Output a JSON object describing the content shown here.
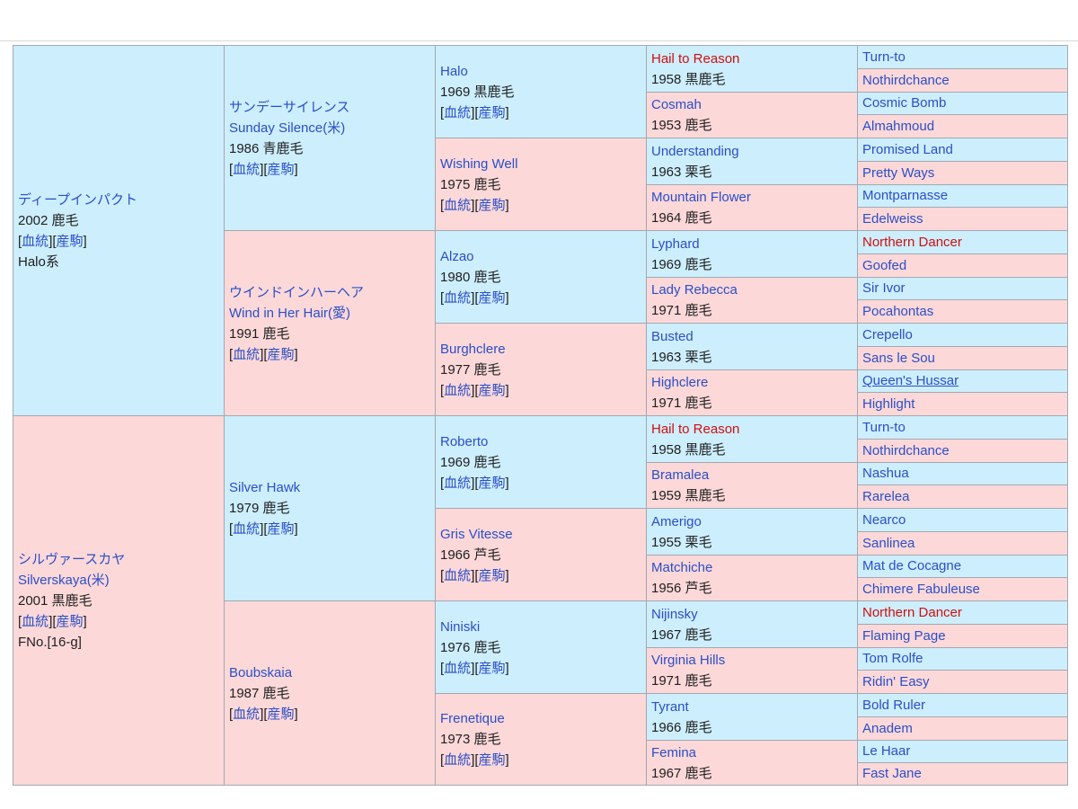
{
  "ped": {
    "g1": [
      {
        "sex": "m",
        "lines": [
          {
            "t": "ディープインパクト",
            "c": "blue"
          },
          {
            "t": "2002 鹿毛"
          },
          {
            "t": "[血統][産駒]",
            "links": true
          },
          {
            "t": "Halo系"
          }
        ]
      },
      {
        "sex": "f",
        "lines": [
          {
            "t": "シルヴァースカヤ",
            "c": "blue"
          },
          {
            "t": "Silverskaya(米)",
            "c": "blue"
          },
          {
            "t": "2001 黒鹿毛"
          },
          {
            "t": "[血統][産駒]",
            "links": true
          },
          {
            "t": "FNo.[16-g]"
          }
        ]
      }
    ],
    "g2": [
      {
        "sex": "m",
        "lines": [
          {
            "t": "サンデーサイレンス",
            "c": "blue"
          },
          {
            "t": "Sunday Silence(米)",
            "c": "blue"
          },
          {
            "t": "1986 青鹿毛"
          },
          {
            "t": "[血統][産駒]",
            "links": true
          }
        ]
      },
      {
        "sex": "f",
        "lines": [
          {
            "t": "ウインドインハーヘア",
            "c": "blue"
          },
          {
            "t": "Wind in Her Hair(愛)",
            "c": "blue"
          },
          {
            "t": "1991 鹿毛"
          },
          {
            "t": "[血統][産駒]",
            "links": true
          }
        ]
      },
      {
        "sex": "m",
        "lines": [
          {
            "t": "Silver Hawk",
            "c": "blue"
          },
          {
            "t": "1979 鹿毛"
          },
          {
            "t": "[血統][産駒]",
            "links": true
          }
        ]
      },
      {
        "sex": "f",
        "lines": [
          {
            "t": "Boubskaia",
            "c": "blue"
          },
          {
            "t": "1987 鹿毛"
          },
          {
            "t": "[血統][産駒]",
            "links": true
          }
        ]
      }
    ],
    "g3": [
      {
        "sex": "m",
        "lines": [
          {
            "t": "Halo",
            "c": "blue"
          },
          {
            "t": "1969 黒鹿毛"
          },
          {
            "t": "[血統][産駒]",
            "links": true
          }
        ]
      },
      {
        "sex": "f",
        "lines": [
          {
            "t": "Wishing Well",
            "c": "blue"
          },
          {
            "t": "1975 鹿毛"
          },
          {
            "t": "[血統][産駒]",
            "links": true
          }
        ]
      },
      {
        "sex": "m",
        "lines": [
          {
            "t": "Alzao",
            "c": "blue"
          },
          {
            "t": "1980 鹿毛"
          },
          {
            "t": "[血統][産駒]",
            "links": true
          }
        ]
      },
      {
        "sex": "f",
        "lines": [
          {
            "t": "Burghclere",
            "c": "blue"
          },
          {
            "t": "1977 鹿毛"
          },
          {
            "t": "[血統][産駒]",
            "links": true
          }
        ]
      },
      {
        "sex": "m",
        "lines": [
          {
            "t": "Roberto",
            "c": "blue"
          },
          {
            "t": "1969 鹿毛"
          },
          {
            "t": "[血統][産駒]",
            "links": true
          }
        ]
      },
      {
        "sex": "f",
        "lines": [
          {
            "t": "Gris Vitesse",
            "c": "blue"
          },
          {
            "t": "1966 芦毛"
          },
          {
            "t": "[血統][産駒]",
            "links": true
          }
        ]
      },
      {
        "sex": "m",
        "lines": [
          {
            "t": "Niniski",
            "c": "blue"
          },
          {
            "t": "1976 鹿毛"
          },
          {
            "t": "[血統][産駒]",
            "links": true
          }
        ]
      },
      {
        "sex": "f",
        "lines": [
          {
            "t": "Frenetique",
            "c": "blue"
          },
          {
            "t": "1973 鹿毛"
          },
          {
            "t": "[血統][産駒]",
            "links": true
          }
        ]
      }
    ],
    "g4": [
      {
        "sex": "m",
        "lines": [
          {
            "t": "Hail to Reason",
            "c": "red"
          },
          {
            "t": "1958 黒鹿毛"
          }
        ]
      },
      {
        "sex": "f",
        "lines": [
          {
            "t": "Cosmah",
            "c": "blue"
          },
          {
            "t": "1953 鹿毛"
          }
        ]
      },
      {
        "sex": "m",
        "lines": [
          {
            "t": "Understanding",
            "c": "blue"
          },
          {
            "t": "1963 栗毛"
          }
        ]
      },
      {
        "sex": "f",
        "lines": [
          {
            "t": "Mountain Flower",
            "c": "blue"
          },
          {
            "t": "1964 鹿毛"
          }
        ]
      },
      {
        "sex": "m",
        "lines": [
          {
            "t": "Lyphard",
            "c": "blue"
          },
          {
            "t": "1969 鹿毛"
          }
        ]
      },
      {
        "sex": "f",
        "lines": [
          {
            "t": "Lady Rebecca",
            "c": "blue"
          },
          {
            "t": "1971 鹿毛"
          }
        ]
      },
      {
        "sex": "m",
        "lines": [
          {
            "t": "Busted",
            "c": "blue"
          },
          {
            "t": "1963 栗毛"
          }
        ]
      },
      {
        "sex": "f",
        "lines": [
          {
            "t": "Highclere",
            "c": "blue"
          },
          {
            "t": "1971 鹿毛"
          }
        ]
      },
      {
        "sex": "m",
        "lines": [
          {
            "t": "Hail to Reason",
            "c": "red"
          },
          {
            "t": "1958 黒鹿毛"
          }
        ]
      },
      {
        "sex": "f",
        "lines": [
          {
            "t": "Bramalea",
            "c": "blue"
          },
          {
            "t": "1959 黒鹿毛"
          }
        ]
      },
      {
        "sex": "m",
        "lines": [
          {
            "t": "Amerigo",
            "c": "blue"
          },
          {
            "t": "1955 栗毛"
          }
        ]
      },
      {
        "sex": "f",
        "lines": [
          {
            "t": "Matchiche",
            "c": "blue"
          },
          {
            "t": "1956 芦毛"
          }
        ]
      },
      {
        "sex": "m",
        "lines": [
          {
            "t": "Nijinsky",
            "c": "blue"
          },
          {
            "t": "1967 鹿毛"
          }
        ]
      },
      {
        "sex": "f",
        "lines": [
          {
            "t": "Virginia Hills",
            "c": "blue"
          },
          {
            "t": "1971 鹿毛"
          }
        ]
      },
      {
        "sex": "m",
        "lines": [
          {
            "t": "Tyrant",
            "c": "blue"
          },
          {
            "t": "1966 鹿毛"
          }
        ]
      },
      {
        "sex": "f",
        "lines": [
          {
            "t": "Femina",
            "c": "blue"
          },
          {
            "t": "1967 鹿毛"
          }
        ]
      }
    ],
    "g5": [
      {
        "sex": "m",
        "lines": [
          {
            "t": "Turn-to",
            "c": "blue"
          }
        ]
      },
      {
        "sex": "f",
        "lines": [
          {
            "t": "Nothirdchance",
            "c": "blue"
          }
        ]
      },
      {
        "sex": "m",
        "lines": [
          {
            "t": "Cosmic Bomb",
            "c": "blue"
          }
        ]
      },
      {
        "sex": "f",
        "lines": [
          {
            "t": "Almahmoud",
            "c": "blue"
          }
        ]
      },
      {
        "sex": "m",
        "lines": [
          {
            "t": "Promised Land",
            "c": "blue"
          }
        ]
      },
      {
        "sex": "f",
        "lines": [
          {
            "t": "Pretty Ways",
            "c": "blue"
          }
        ]
      },
      {
        "sex": "m",
        "lines": [
          {
            "t": "Montparnasse",
            "c": "blue"
          }
        ]
      },
      {
        "sex": "f",
        "lines": [
          {
            "t": "Edelweiss",
            "c": "blue"
          }
        ]
      },
      {
        "sex": "m",
        "lines": [
          {
            "t": "Northern Dancer",
            "c": "red"
          }
        ]
      },
      {
        "sex": "f",
        "lines": [
          {
            "t": "Goofed",
            "c": "blue"
          }
        ]
      },
      {
        "sex": "m",
        "lines": [
          {
            "t": "Sir Ivor",
            "c": "blue"
          }
        ]
      },
      {
        "sex": "f",
        "lines": [
          {
            "t": "Pocahontas",
            "c": "blue"
          }
        ]
      },
      {
        "sex": "m",
        "lines": [
          {
            "t": "Crepello",
            "c": "blue"
          }
        ]
      },
      {
        "sex": "f",
        "lines": [
          {
            "t": "Sans le Sou",
            "c": "blue"
          }
        ]
      },
      {
        "sex": "m",
        "lines": [
          {
            "t": "Queen's Hussar",
            "c": "blue",
            "u": true
          }
        ]
      },
      {
        "sex": "f",
        "lines": [
          {
            "t": "Highlight",
            "c": "blue"
          }
        ]
      },
      {
        "sex": "m",
        "lines": [
          {
            "t": "Turn-to",
            "c": "blue"
          }
        ]
      },
      {
        "sex": "f",
        "lines": [
          {
            "t": "Nothirdchance",
            "c": "blue"
          }
        ]
      },
      {
        "sex": "m",
        "lines": [
          {
            "t": "Nashua",
            "c": "blue"
          }
        ]
      },
      {
        "sex": "f",
        "lines": [
          {
            "t": "Rarelea",
            "c": "blue"
          }
        ]
      },
      {
        "sex": "m",
        "lines": [
          {
            "t": "Nearco",
            "c": "blue"
          }
        ]
      },
      {
        "sex": "f",
        "lines": [
          {
            "t": "Sanlinea",
            "c": "blue"
          }
        ]
      },
      {
        "sex": "m",
        "lines": [
          {
            "t": "Mat de Cocagne",
            "c": "blue"
          }
        ]
      },
      {
        "sex": "f",
        "lines": [
          {
            "t": "Chimere Fabuleuse",
            "c": "blue"
          }
        ]
      },
      {
        "sex": "m",
        "lines": [
          {
            "t": "Northern Dancer",
            "c": "red"
          }
        ]
      },
      {
        "sex": "f",
        "lines": [
          {
            "t": "Flaming Page",
            "c": "blue"
          }
        ]
      },
      {
        "sex": "m",
        "lines": [
          {
            "t": "Tom Rolfe",
            "c": "blue"
          }
        ]
      },
      {
        "sex": "f",
        "lines": [
          {
            "t": "Ridin' Easy",
            "c": "blue"
          }
        ]
      },
      {
        "sex": "m",
        "lines": [
          {
            "t": "Bold Ruler",
            "c": "blue"
          }
        ]
      },
      {
        "sex": "f",
        "lines": [
          {
            "t": "Anadem",
            "c": "blue"
          }
        ]
      },
      {
        "sex": "m",
        "lines": [
          {
            "t": "Le Haar",
            "c": "blue"
          }
        ]
      },
      {
        "sex": "f",
        "lines": [
          {
            "t": "Fast Jane",
            "c": "blue"
          }
        ]
      }
    ]
  }
}
